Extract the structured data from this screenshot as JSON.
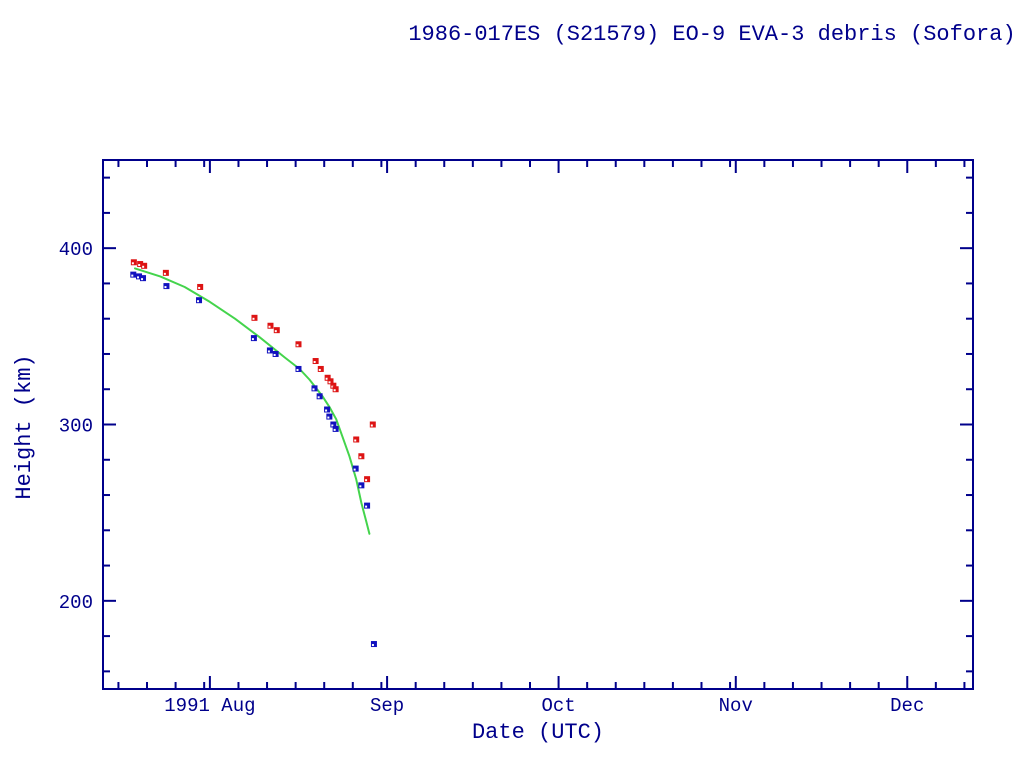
{
  "page": {
    "background": "#ffffff"
  },
  "chart_data": {
    "type": "scatter",
    "title": "1986-017ES (S21579) EO-9 EVA-3 debris (Sofora)",
    "xlabel": "Date (UTC)",
    "ylabel": "Height (km)",
    "x_unit": "days since 1991 Aug 1.0",
    "xlim": [
      -18.7,
      133.5
    ],
    "ylim": [
      150,
      450
    ],
    "grid": false,
    "legend": "none",
    "colors": {
      "axis_and_text": "#00008b",
      "red_series": "#dd1414",
      "blue_series": "#1212bf",
      "model_line": "#44d44c",
      "marker_notch": "#ffffff"
    },
    "x_major_ticks": [
      {
        "d": 0,
        "label": "1991 Aug"
      },
      {
        "d": 31,
        "label": "Sep"
      },
      {
        "d": 61,
        "label": "Oct"
      },
      {
        "d": 92,
        "label": "Nov"
      },
      {
        "d": 122,
        "label": "Dec"
      }
    ],
    "x_minor_ticks_days": [
      -16,
      -11,
      -6,
      -1,
      5,
      10,
      15,
      20,
      25,
      30,
      36,
      41,
      46,
      51,
      56,
      66,
      71,
      76,
      81,
      86,
      91,
      97,
      102,
      107,
      112,
      117,
      127,
      132
    ],
    "y_major_ticks": [
      {
        "v": 200,
        "label": "200"
      },
      {
        "v": 300,
        "label": "300"
      },
      {
        "v": 400,
        "label": "400"
      }
    ],
    "y_minor_ticks": [
      160,
      180,
      220,
      240,
      260,
      280,
      320,
      340,
      360,
      380,
      420,
      440
    ],
    "series": [
      {
        "name": "red-squares",
        "type": "points",
        "marker": "square-notched",
        "color": "#dd1414",
        "points": [
          [
            -13.3,
            392
          ],
          [
            -12.2,
            391
          ],
          [
            -11.5,
            390
          ],
          [
            -7.7,
            386
          ],
          [
            -1.7,
            378
          ],
          [
            7.8,
            360.5
          ],
          [
            10.6,
            356
          ],
          [
            11.7,
            353.5
          ],
          [
            15.5,
            345.5
          ],
          [
            18.5,
            336
          ],
          [
            19.4,
            331.5
          ],
          [
            20.6,
            326.5
          ],
          [
            21.1,
            324.5
          ],
          [
            21.6,
            322
          ],
          [
            22.0,
            320
          ],
          [
            25.6,
            291.5
          ],
          [
            26.5,
            282
          ],
          [
            27.5,
            269
          ],
          [
            28.5,
            300
          ]
        ]
      },
      {
        "name": "blue-squares",
        "type": "points",
        "marker": "square-notched",
        "color": "#1212bf",
        "points": [
          [
            -13.4,
            385
          ],
          [
            -12.4,
            384
          ],
          [
            -11.7,
            383
          ],
          [
            -7.6,
            378.5
          ],
          [
            -1.9,
            370.5
          ],
          [
            7.7,
            349
          ],
          [
            10.5,
            342
          ],
          [
            11.5,
            340
          ],
          [
            15.5,
            331.5
          ],
          [
            18.3,
            320.5
          ],
          [
            19.2,
            316
          ],
          [
            20.5,
            308.5
          ],
          [
            20.9,
            304.5
          ],
          [
            21.6,
            300
          ],
          [
            22.0,
            297.5
          ],
          [
            25.5,
            275
          ],
          [
            26.5,
            265.5
          ],
          [
            27.5,
            254
          ],
          [
            28.7,
            175.5
          ]
        ]
      },
      {
        "name": "green-model-line",
        "type": "line",
        "color": "#44d44c",
        "points": [
          [
            -13.1,
            388.5
          ],
          [
            -8.7,
            384
          ],
          [
            -4.4,
            378
          ],
          [
            0,
            369.5
          ],
          [
            4.4,
            360
          ],
          [
            8.7,
            349.5
          ],
          [
            13.1,
            338
          ],
          [
            15.7,
            331.5
          ],
          [
            17.4,
            325.5
          ],
          [
            19.7,
            316
          ],
          [
            20.9,
            310
          ],
          [
            22.1,
            303
          ],
          [
            23.2,
            293
          ],
          [
            24.4,
            282
          ],
          [
            25.6,
            269
          ],
          [
            26.5,
            255.5
          ],
          [
            27.4,
            244.5
          ],
          [
            27.9,
            238
          ]
        ]
      }
    ]
  }
}
